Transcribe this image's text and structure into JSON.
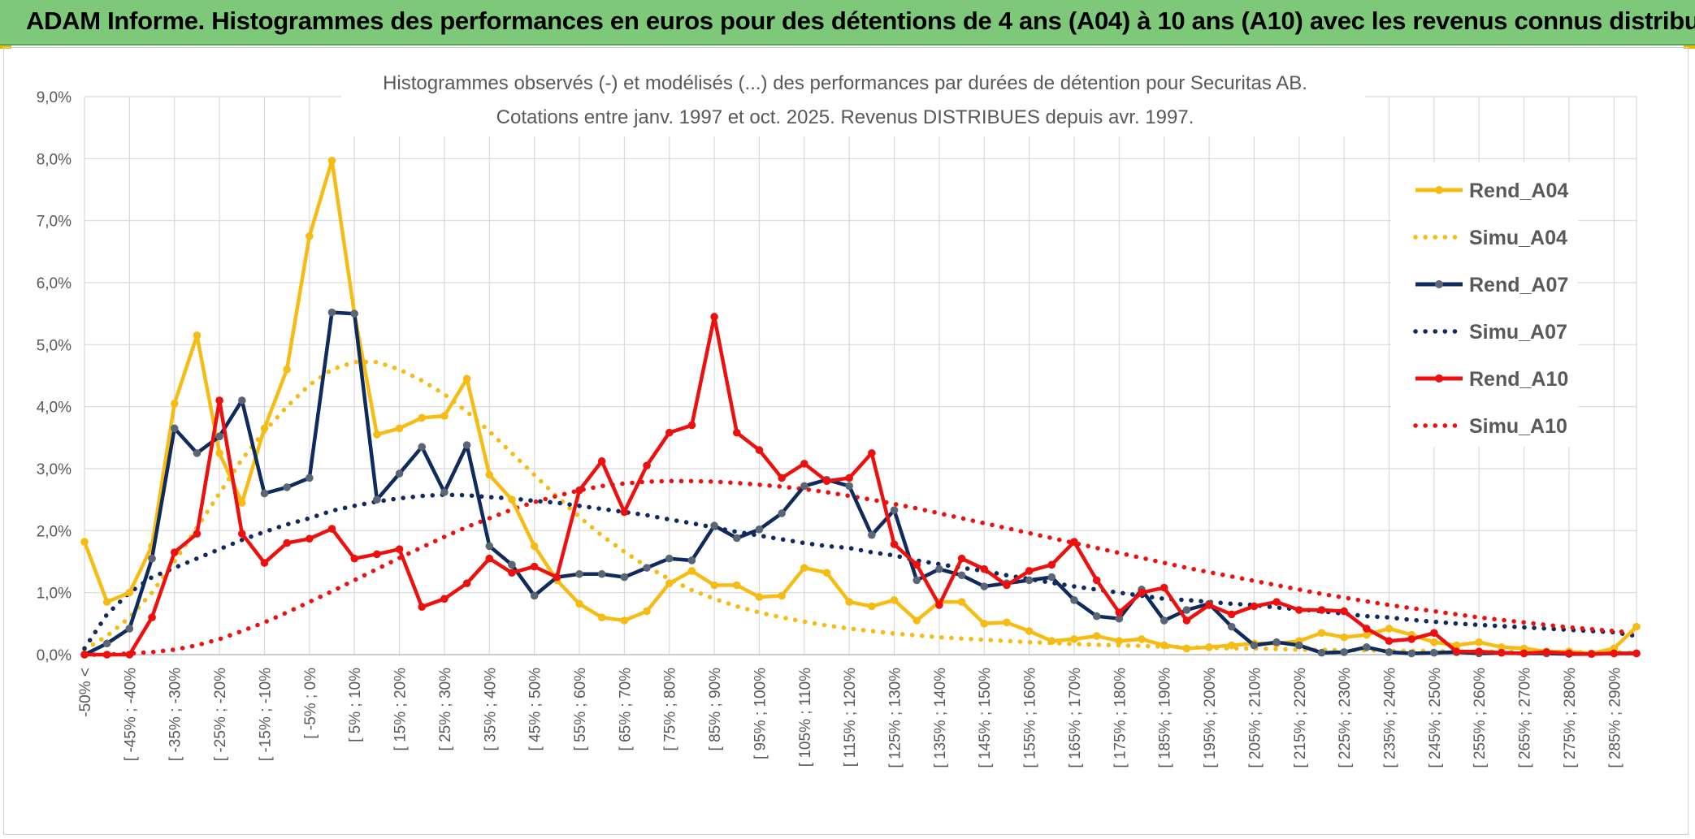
{
  "banner": {
    "title": "ADAM Informe. Histogrammes des performances en euros pour des détentions de 4 ans (A04) à 10 ans (A10) avec les revenus connus distribués"
  },
  "colors": {
    "banner_bg": "#7ec87a",
    "a04": "#f7bc14",
    "a07": "#0f2a5c",
    "a07_marker": "#5a6575",
    "a10": "#ee0f0f",
    "grid": "#d9d9d9"
  },
  "chart_data": {
    "type": "line",
    "title": "Histogrammes observés (-) et modélisés (...) des performances par durées de détention pour Securitas AB.",
    "subtitle": "Cotations entre janv. 1997 et oct. 2025. Revenus DISTRIBUES depuis avr. 1997.",
    "xlabel": "",
    "ylabel": "",
    "ylim": [
      0,
      9
    ],
    "y_unit": "%",
    "y_ticks": [
      "0,0%",
      "1,0%",
      "2,0%",
      "3,0%",
      "4,0%",
      "5,0%",
      "6,0%",
      "7,0%",
      "8,0%",
      "9,0%"
    ],
    "grid": true,
    "legend_position": "right",
    "x_tick_labels": [
      "-50% <",
      "[ -45% ; -40%",
      "[ -35% ; -30%",
      "[ -25% ; -20%",
      "[ -15% ; -10%",
      "[ -5% ; 0%",
      "[ 5% ; 10%",
      "[ 15% ; 20%",
      "[ 25% ; 30%",
      "[ 35% ; 40%",
      "[ 45% ; 50%",
      "[ 55% ; 60%",
      "[ 65% ; 70%",
      "[ 75% ; 80%",
      "[ 85% ; 90%",
      "[ 95% ; 100%",
      "[ 105% ; 110%",
      "[ 115% ; 120%",
      "[ 125% ; 130%",
      "[ 135% ; 140%",
      "[ 145% ; 150%",
      "[ 155% ; 160%",
      "[ 165% ; 170%",
      "[ 175% ; 180%",
      "[ 185% ; 190%",
      "[ 195% ; 200%",
      "[ 205% ; 210%",
      "[ 215% ; 220%",
      "[ 225% ; 230%",
      "[ 235% ; 240%",
      "[ 245% ; 250%",
      "[ 255% ; 260%",
      "[ 265% ; 270%",
      "[ 275% ; 280%",
      "[ 285% ; 290%"
    ],
    "n_bins": 70,
    "series": [
      {
        "name": "Rend_A04",
        "style": "solid",
        "color": "#f7bc14",
        "values": [
          1.82,
          0.85,
          1.0,
          1.75,
          4.05,
          5.15,
          3.25,
          2.45,
          3.65,
          4.6,
          6.75,
          7.97,
          5.5,
          3.55,
          3.65,
          3.82,
          3.85,
          4.45,
          2.9,
          2.5,
          1.75,
          1.2,
          0.82,
          0.6,
          0.55,
          0.7,
          1.15,
          1.35,
          1.12,
          1.12,
          0.93,
          0.95,
          1.4,
          1.32,
          0.85,
          0.78,
          0.88,
          0.55,
          0.85,
          0.85,
          0.5,
          0.52,
          0.38,
          0.22,
          0.25,
          0.3,
          0.22,
          0.25,
          0.15,
          0.1,
          0.12,
          0.15,
          0.18,
          0.18,
          0.22,
          0.35,
          0.28,
          0.32,
          0.42,
          0.32,
          0.2,
          0.15,
          0.2,
          0.12,
          0.1,
          0.05,
          0.05,
          0.02,
          0.1,
          0.45
        ]
      },
      {
        "name": "Simu_A04",
        "style": "dotted",
        "color": "#f7bc14",
        "values": [
          0.08,
          0.3,
          0.6,
          1.0,
          1.5,
          2.05,
          2.6,
          3.15,
          3.6,
          4.0,
          4.35,
          4.6,
          4.72,
          4.72,
          4.6,
          4.42,
          4.2,
          3.92,
          3.6,
          3.25,
          2.9,
          2.55,
          2.22,
          1.92,
          1.66,
          1.42,
          1.22,
          1.04,
          0.9,
          0.78,
          0.68,
          0.6,
          0.53,
          0.47,
          0.42,
          0.38,
          0.34,
          0.31,
          0.28,
          0.26,
          0.24,
          0.22,
          0.2,
          0.19,
          0.17,
          0.16,
          0.15,
          0.14,
          0.13,
          0.12,
          0.11,
          0.1,
          0.1,
          0.09,
          0.08,
          0.08,
          0.07,
          0.07,
          0.06,
          0.06,
          0.06,
          0.05,
          0.05,
          0.05,
          0.04,
          0.04,
          0.04,
          0.04,
          0.04,
          0.03
        ]
      },
      {
        "name": "Rend_A07",
        "style": "solid",
        "color": "#0f2a5c",
        "values": [
          0.0,
          0.18,
          0.42,
          1.55,
          3.65,
          3.25,
          3.52,
          4.1,
          2.6,
          2.7,
          2.85,
          5.52,
          5.5,
          2.5,
          2.92,
          3.35,
          2.62,
          3.38,
          1.75,
          1.45,
          0.95,
          1.25,
          1.3,
          1.3,
          1.25,
          1.4,
          1.55,
          1.52,
          2.08,
          1.88,
          2.02,
          2.28,
          2.72,
          2.82,
          2.72,
          1.93,
          2.33,
          1.2,
          1.38,
          1.28,
          1.1,
          1.15,
          1.2,
          1.25,
          0.88,
          0.62,
          0.58,
          1.05,
          0.55,
          0.72,
          0.82,
          0.45,
          0.15,
          0.2,
          0.15,
          0.03,
          0.04,
          0.12,
          0.04,
          0.02,
          0.03,
          0.04,
          0.02,
          0.03,
          0.02,
          0.02,
          0.01,
          0.01,
          0.02,
          0.02
        ]
      },
      {
        "name": "Simu_A07",
        "style": "dotted",
        "color": "#0f2a5c",
        "values": [
          0.1,
          0.65,
          1.0,
          1.25,
          1.4,
          1.55,
          1.7,
          1.85,
          1.98,
          2.1,
          2.2,
          2.32,
          2.4,
          2.47,
          2.52,
          2.56,
          2.58,
          2.57,
          2.54,
          2.52,
          2.48,
          2.45,
          2.4,
          2.35,
          2.3,
          2.25,
          2.18,
          2.12,
          2.05,
          1.98,
          1.92,
          1.86,
          1.8,
          1.75,
          1.72,
          1.65,
          1.6,
          1.52,
          1.46,
          1.4,
          1.35,
          1.28,
          1.22,
          1.16,
          1.1,
          1.05,
          1.0,
          0.95,
          0.9,
          0.88,
          0.85,
          0.82,
          0.8,
          0.76,
          0.73,
          0.7,
          0.66,
          0.62,
          0.6,
          0.56,
          0.53,
          0.5,
          0.48,
          0.46,
          0.44,
          0.42,
          0.4,
          0.38,
          0.36,
          0.3
        ]
      },
      {
        "name": "Rend_A10",
        "style": "solid",
        "color": "#ee0f0f",
        "values": [
          0.0,
          0.0,
          0.0,
          0.6,
          1.65,
          1.95,
          4.1,
          1.95,
          1.48,
          1.8,
          1.87,
          2.03,
          1.55,
          1.62,
          1.7,
          0.77,
          0.9,
          1.15,
          1.55,
          1.32,
          1.42,
          1.25,
          2.65,
          3.12,
          2.3,
          3.05,
          3.58,
          3.7,
          5.45,
          3.58,
          3.3,
          2.85,
          3.08,
          2.8,
          2.85,
          3.25,
          1.78,
          1.45,
          0.8,
          1.55,
          1.38,
          1.12,
          1.35,
          1.45,
          1.82,
          1.2,
          0.68,
          1.0,
          1.08,
          0.55,
          0.8,
          0.65,
          0.78,
          0.85,
          0.72,
          0.72,
          0.7,
          0.42,
          0.22,
          0.25,
          0.35,
          0.05,
          0.05,
          0.03,
          0.02,
          0.04,
          0.02,
          0.01,
          0.02,
          0.02
        ]
      },
      {
        "name": "Simu_A10",
        "style": "dotted",
        "color": "#ee0f0f",
        "values": [
          0.0,
          0.0,
          0.02,
          0.04,
          0.08,
          0.15,
          0.25,
          0.38,
          0.52,
          0.68,
          0.85,
          1.02,
          1.2,
          1.38,
          1.56,
          1.73,
          1.9,
          2.06,
          2.2,
          2.34,
          2.46,
          2.56,
          2.65,
          2.72,
          2.76,
          2.79,
          2.8,
          2.8,
          2.79,
          2.77,
          2.74,
          2.71,
          2.67,
          2.62,
          2.56,
          2.5,
          2.43,
          2.36,
          2.28,
          2.2,
          2.12,
          2.04,
          1.96,
          1.88,
          1.8,
          1.72,
          1.64,
          1.56,
          1.48,
          1.4,
          1.33,
          1.26,
          1.19,
          1.12,
          1.05,
          0.98,
          0.92,
          0.86,
          0.8,
          0.75,
          0.7,
          0.65,
          0.6,
          0.56,
          0.52,
          0.48,
          0.44,
          0.41,
          0.38,
          0.35
        ]
      }
    ]
  }
}
